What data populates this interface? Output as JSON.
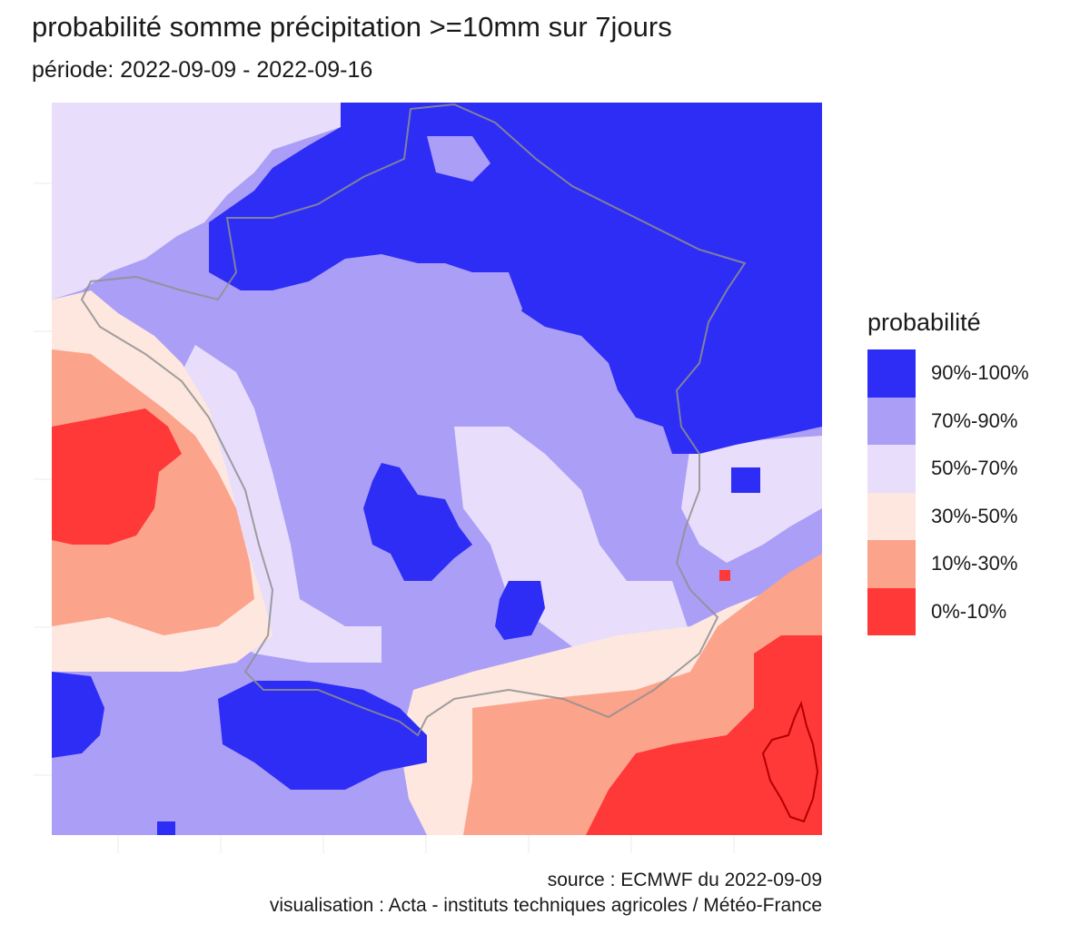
{
  "chart_data": {
    "type": "heatmap",
    "title": "probabilité somme précipitation >=10mm sur 7jours",
    "subtitle": "période: 2022-09-09 - 2022-09-16",
    "legend": {
      "title": "probabilité",
      "placement": "right",
      "entries": [
        {
          "label": "90%-100%",
          "color": "#2d2df5"
        },
        {
          "label": "70%-90%",
          "color": "#ab9ef6"
        },
        {
          "label": "50%-70%",
          "color": "#e8defb"
        },
        {
          "label": "30%-50%",
          "color": "#fde7df"
        },
        {
          "label": "10%-30%",
          "color": "#fca38b"
        },
        {
          "label": "0%-10%",
          "color": "#ff3838"
        }
      ]
    },
    "grid": true,
    "region": "France métropolitaine et mers voisines",
    "caption": {
      "source": "source : ECMWF du 2022-09-09",
      "visualisation": "visualisation : Acta - instituts techniques agricoles / Météo-France"
    }
  }
}
